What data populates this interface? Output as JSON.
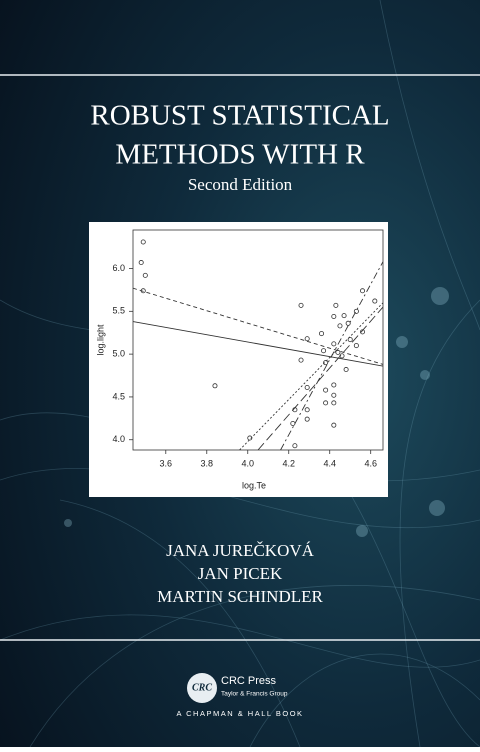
{
  "cover": {
    "title_lines": [
      "ROBUST STATISTICAL",
      "METHODS WITH R"
    ],
    "subtitle": "Second Edition",
    "authors": [
      "JANA JUREČKOVÁ",
      "JAN PICEK",
      "MARTIN SCHINDLER"
    ],
    "publisher": {
      "logo": "CRC",
      "name": "CRC Press",
      "group": "Taylor & Francis Group",
      "imprint": "A CHAPMAN & HALL BOOK"
    }
  },
  "chart_data": {
    "type": "scatter",
    "x_label": "log.Te",
    "y_label": "log.light",
    "xlim": [
      3.44,
      4.66
    ],
    "ylim": [
      3.88,
      6.45
    ],
    "xticks": [
      3.6,
      3.8,
      {
        "value": 4,
        "label": "4.0"
      },
      4.2,
      4.4,
      4.6
    ],
    "yticks": [
      {
        "value": 4,
        "label": "4.0"
      },
      4.5,
      {
        "value": 5,
        "label": "5.0"
      },
      5.5,
      {
        "value": 6,
        "label": "6.0"
      }
    ],
    "color": "#333333",
    "x": [
      3.49,
      3.48,
      3.5,
      3.49,
      3.84,
      4.01,
      4.26,
      4.26,
      4.23,
      4.22,
      4.23,
      4.29,
      4.29,
      4.29,
      4.29,
      4.36,
      4.37,
      4.38,
      4.42,
      4.43,
      4.42,
      4.45,
      4.47,
      4.49,
      4.46,
      4.44,
      4.42,
      4.42,
      4.42,
      4.38,
      4.38,
      4.42,
      4.5,
      4.53,
      4.56,
      4.56,
      4.62,
      4.53,
      4.48
    ],
    "y": [
      6.31,
      6.07,
      5.92,
      5.74,
      4.63,
      4.02,
      5.57,
      4.93,
      4.35,
      4.19,
      3.93,
      4.61,
      4.35,
      4.24,
      5.18,
      5.24,
      5.04,
      4.9,
      5.12,
      5.57,
      5.44,
      5.33,
      5.45,
      5.36,
      4.98,
      5.02,
      4.64,
      4.52,
      4.43,
      4.58,
      4.43,
      4.17,
      5.17,
      5.1,
      5.74,
      5.26,
      5.62,
      5.5,
      4.82
    ],
    "lines": [
      {
        "x": [
          3.44,
          4.66
        ],
        "y": [
          5.38,
          4.86
        ],
        "dash": "none"
      },
      {
        "x": [
          3.44,
          4.66
        ],
        "y": [
          5.77,
          4.88
        ],
        "dash": "4 3"
      },
      {
        "x": [
          4.16,
          4.66
        ],
        "y": [
          3.88,
          6.08
        ],
        "dash": "7 3 2 3"
      },
      {
        "x": [
          4.05,
          4.66
        ],
        "y": [
          3.88,
          5.55
        ],
        "dash": "9 4"
      },
      {
        "x": [
          3.96,
          4.66
        ],
        "y": [
          3.88,
          5.6
        ],
        "dash": "2 2"
      }
    ]
  }
}
